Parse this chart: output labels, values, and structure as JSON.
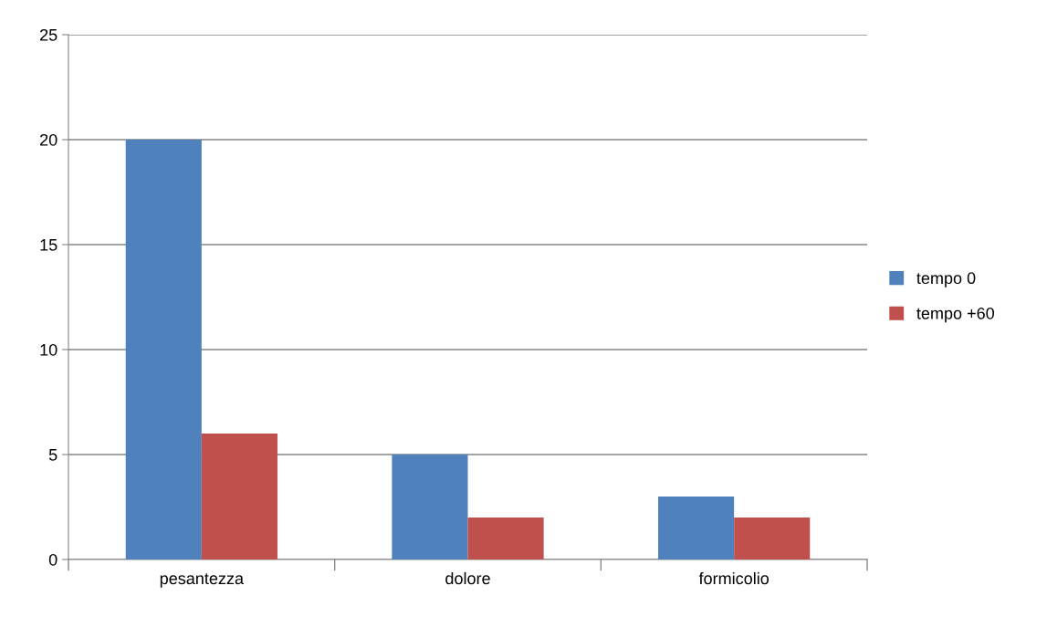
{
  "chart_data": {
    "type": "bar",
    "categories": [
      "pesantezza",
      "dolore",
      "formicolio"
    ],
    "series": [
      {
        "name": "tempo 0",
        "color": "#4f81bd",
        "values": [
          20,
          5,
          3
        ]
      },
      {
        "name": "tempo +60",
        "color": "#c0504d",
        "values": [
          6,
          2,
          2
        ]
      }
    ],
    "ylim": [
      0,
      25
    ],
    "yticks": [
      0,
      5,
      10,
      15,
      20,
      25
    ],
    "grid": "y",
    "legend": "right"
  }
}
